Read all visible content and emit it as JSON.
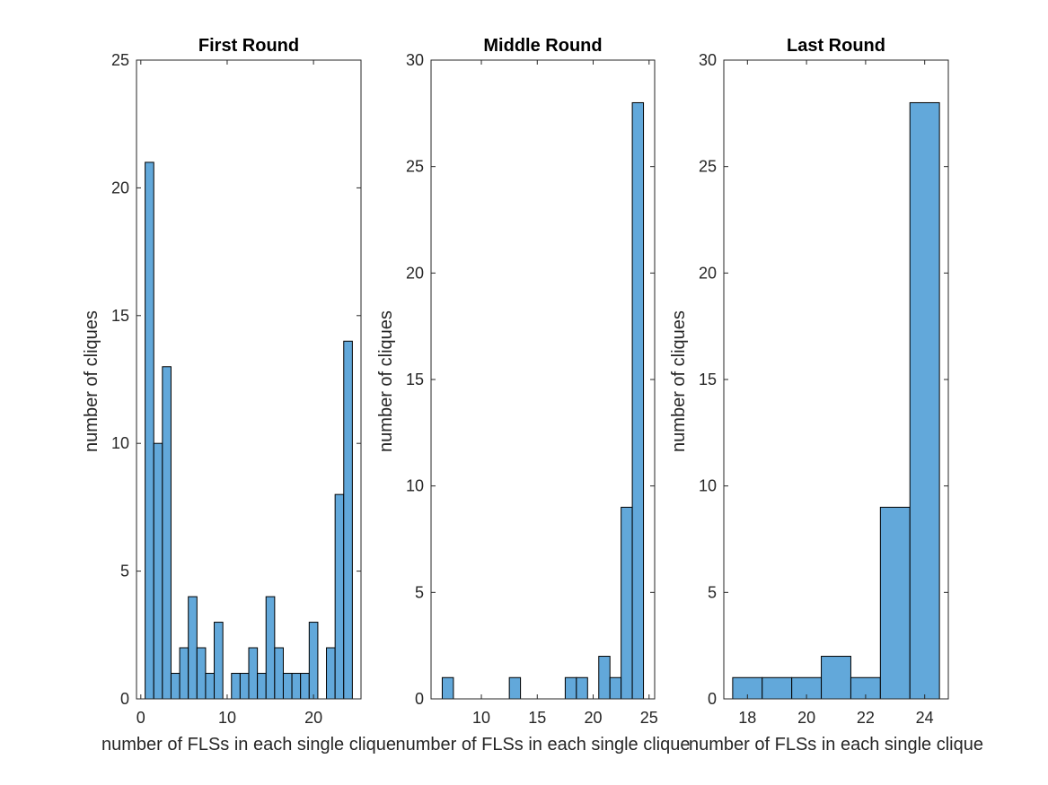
{
  "chart_data": [
    {
      "type": "bar",
      "title": "First Round",
      "xlabel": "number of FLSs in each single clique",
      "ylabel": "number of cliques",
      "xlim": [
        -0.5,
        25.5
      ],
      "ylim": [
        0,
        25
      ],
      "xticks": [
        0,
        10,
        20
      ],
      "yticks": [
        0,
        5,
        10,
        15,
        20,
        25
      ],
      "bar_color": "#62a8da",
      "bin_width": 1,
      "bins": [
        {
          "x": 1,
          "value": 21
        },
        {
          "x": 2,
          "value": 10
        },
        {
          "x": 3,
          "value": 13
        },
        {
          "x": 4,
          "value": 1
        },
        {
          "x": 5,
          "value": 2
        },
        {
          "x": 6,
          "value": 4
        },
        {
          "x": 7,
          "value": 2
        },
        {
          "x": 8,
          "value": 1
        },
        {
          "x": 9,
          "value": 3
        },
        {
          "x": 10,
          "value": 0
        },
        {
          "x": 11,
          "value": 1
        },
        {
          "x": 12,
          "value": 1
        },
        {
          "x": 13,
          "value": 2
        },
        {
          "x": 14,
          "value": 1
        },
        {
          "x": 15,
          "value": 4
        },
        {
          "x": 16,
          "value": 2
        },
        {
          "x": 17,
          "value": 1
        },
        {
          "x": 18,
          "value": 1
        },
        {
          "x": 19,
          "value": 1
        },
        {
          "x": 20,
          "value": 3
        },
        {
          "x": 21,
          "value": 0
        },
        {
          "x": 22,
          "value": 2
        },
        {
          "x": 23,
          "value": 8
        },
        {
          "x": 24,
          "value": 14
        }
      ]
    },
    {
      "type": "bar",
      "title": "Middle Round",
      "xlabel": "number of FLSs in each single clique",
      "ylabel": "number of cliques",
      "xlim": [
        5.5,
        25.5
      ],
      "ylim": [
        0,
        30
      ],
      "xticks": [
        10,
        15,
        20,
        25
      ],
      "yticks": [
        0,
        5,
        10,
        15,
        20,
        25,
        30
      ],
      "bar_color": "#62a8da",
      "bin_width": 1,
      "bins": [
        {
          "x": 7,
          "value": 1
        },
        {
          "x": 8,
          "value": 0
        },
        {
          "x": 9,
          "value": 0
        },
        {
          "x": 10,
          "value": 0
        },
        {
          "x": 11,
          "value": 0
        },
        {
          "x": 12,
          "value": 0
        },
        {
          "x": 13,
          "value": 1
        },
        {
          "x": 14,
          "value": 0
        },
        {
          "x": 15,
          "value": 0
        },
        {
          "x": 16,
          "value": 0
        },
        {
          "x": 17,
          "value": 0
        },
        {
          "x": 18,
          "value": 1
        },
        {
          "x": 19,
          "value": 1
        },
        {
          "x": 20,
          "value": 0
        },
        {
          "x": 21,
          "value": 2
        },
        {
          "x": 22,
          "value": 1
        },
        {
          "x": 23,
          "value": 9
        },
        {
          "x": 24,
          "value": 28
        }
      ]
    },
    {
      "type": "bar",
      "title": "Last Round",
      "xlabel": "number of FLSs in each single clique",
      "ylabel": "number of cliques",
      "xlim": [
        17.2,
        24.8
      ],
      "ylim": [
        0,
        30
      ],
      "xticks": [
        18,
        20,
        22,
        24
      ],
      "yticks": [
        0,
        5,
        10,
        15,
        20,
        25,
        30
      ],
      "bar_color": "#62a8da",
      "bin_width": 1,
      "bins": [
        {
          "x": 18,
          "value": 1
        },
        {
          "x": 19,
          "value": 1
        },
        {
          "x": 20,
          "value": 1
        },
        {
          "x": 21,
          "value": 2
        },
        {
          "x": 22,
          "value": 1
        },
        {
          "x": 23,
          "value": 9
        },
        {
          "x": 24,
          "value": 28
        }
      ]
    }
  ]
}
